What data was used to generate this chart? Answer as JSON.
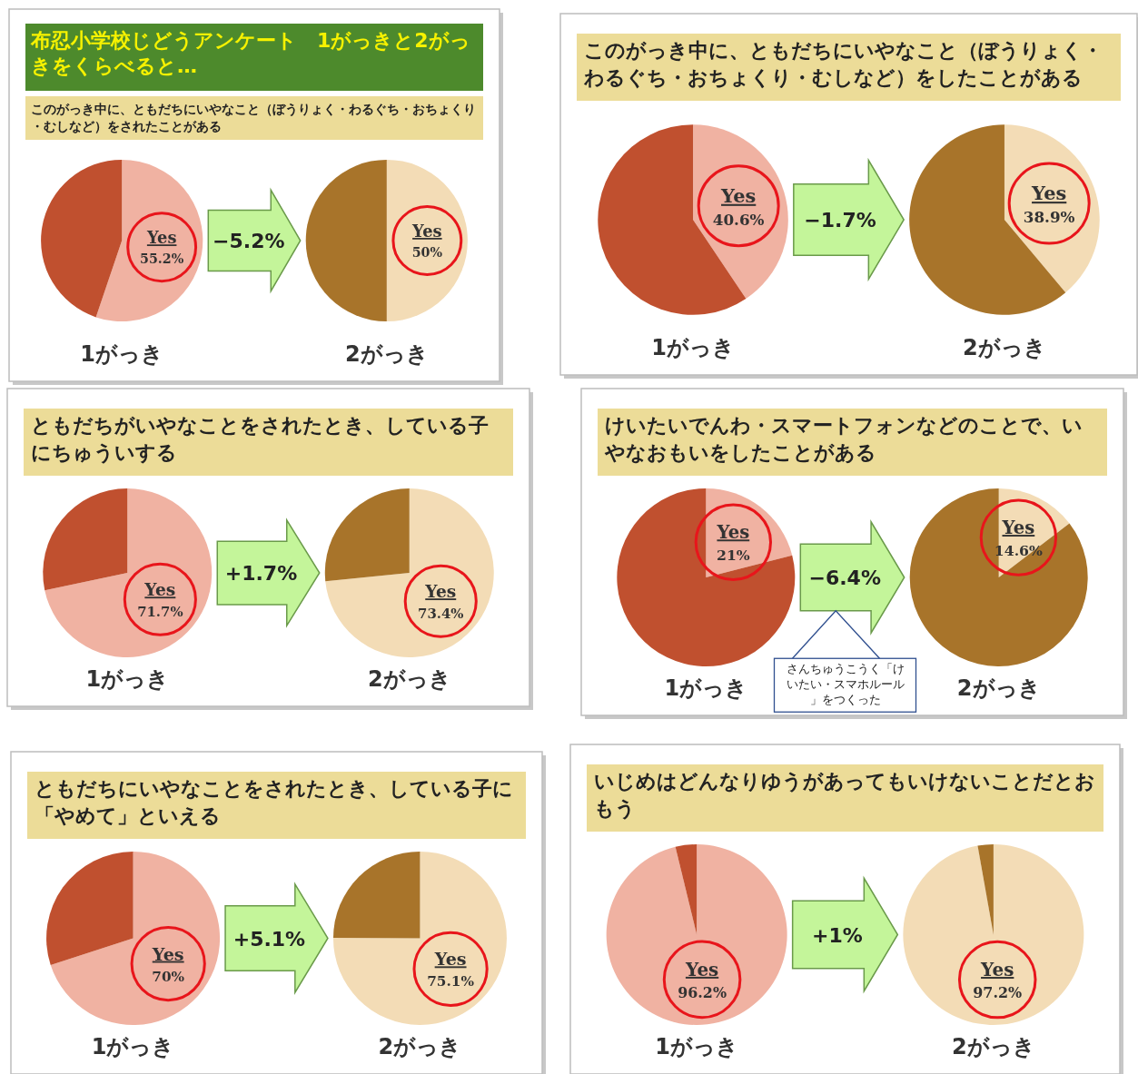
{
  "chart_data": [
    {
      "type": "pie",
      "title": "布忍小学校じどうアンケート　1がっきと2がっきをくらべると…",
      "subtitle": "このがっき中に、ともだちにいやなこと（ぼうりょく・わるぐち・おちょくり・むしなど）をされたことがある",
      "categories": [
        "Yes",
        null
      ],
      "values": [
        55.2,
        44.8
      ],
      "colors": [
        "#f0b2a2",
        "#c0502f"
      ],
      "value_labels": [
        "55.2%",
        null
      ],
      "xlabel": "1がっき"
    },
    {
      "type": "pie",
      "categories": [
        "Yes",
        null
      ],
      "values": [
        50,
        50
      ],
      "colors": [
        "#f3dcb6",
        "#a8742a"
      ],
      "value_labels": [
        "50%",
        null
      ],
      "xlabel": "2がっき",
      "annotations": [
        "−5.2%"
      ]
    },
    {
      "type": "pie",
      "title": "このがっき中に、ともだちにいやなこと（ぼうりょく・わるぐち・おちょくり・むしなど）をしたことがある",
      "categories": [
        "Yes",
        null
      ],
      "values": [
        40.6,
        59.4
      ],
      "colors": [
        "#f0b2a2",
        "#c0502f"
      ],
      "value_labels": [
        "40.6%",
        null
      ],
      "xlabel": "1がっき"
    },
    {
      "type": "pie",
      "categories": [
        "Yes",
        null
      ],
      "values": [
        38.9,
        61.1
      ],
      "colors": [
        "#f3dcb6",
        "#a8742a"
      ],
      "value_labels": [
        "38.9%",
        null
      ],
      "xlabel": "2がっき",
      "annotations": [
        "−1.7%"
      ]
    },
    {
      "type": "pie",
      "title": "ともだちがいやなことをされたとき、している子にちゅういする",
      "categories": [
        "Yes",
        null
      ],
      "values": [
        71.7,
        28.3
      ],
      "colors": [
        "#f0b2a2",
        "#c0502f"
      ],
      "value_labels": [
        "71.7%",
        null
      ],
      "xlabel": "1がっき"
    },
    {
      "type": "pie",
      "categories": [
        "Yes",
        null
      ],
      "values": [
        73.4,
        26.6
      ],
      "colors": [
        "#f3dcb6",
        "#a8742a"
      ],
      "value_labels": [
        "73.4%",
        null
      ],
      "xlabel": "2がっき",
      "annotations": [
        "+1.7%"
      ]
    },
    {
      "type": "pie",
      "title": "けいたいでんわ・スマートフォンなどのことで、いやなおもいをしたことがある",
      "categories": [
        "Yes",
        null
      ],
      "values": [
        21,
        79
      ],
      "colors": [
        "#f0b2a2",
        "#c0502f"
      ],
      "value_labels": [
        "21%",
        null
      ],
      "xlabel": "1がっき"
    },
    {
      "type": "pie",
      "categories": [
        "Yes",
        null
      ],
      "values": [
        14.6,
        85.4
      ],
      "colors": [
        "#f3dcb6",
        "#a8742a"
      ],
      "value_labels": [
        "14.6%",
        null
      ],
      "xlabel": "2がっき",
      "annotations": [
        "−6.4%",
        "さんちゅうこうく「けいたい・スマホルール」をつくった"
      ]
    },
    {
      "type": "pie",
      "title": "ともだちにいやなことをされたとき、している子に「やめて」といえる",
      "categories": [
        "Yes",
        null
      ],
      "values": [
        70,
        30
      ],
      "colors": [
        "#f0b2a2",
        "#c0502f"
      ],
      "value_labels": [
        "70%",
        null
      ],
      "xlabel": "1がっき"
    },
    {
      "type": "pie",
      "categories": [
        "Yes",
        null
      ],
      "values": [
        75.1,
        24.9
      ],
      "colors": [
        "#f3dcb6",
        "#a8742a"
      ],
      "value_labels": [
        "75.1%",
        null
      ],
      "xlabel": "2がっき",
      "annotations": [
        "+5.1%"
      ]
    },
    {
      "type": "pie",
      "title": "いじめはどんなりゆうがあってもいけないことだとおもう",
      "categories": [
        "Yes",
        null
      ],
      "values": [
        96.2,
        3.8
      ],
      "colors": [
        "#f0b2a2",
        "#c0502f"
      ],
      "value_labels": [
        "96.2%",
        null
      ],
      "xlabel": "1がっき"
    },
    {
      "type": "pie",
      "categories": [
        "Yes",
        null
      ],
      "values": [
        97.2,
        2.8
      ],
      "colors": [
        "#f3dcb6",
        "#a8742a"
      ],
      "value_labels": [
        "97.2%",
        null
      ],
      "xlabel": "2がっき",
      "annotations": [
        "+1%"
      ]
    }
  ]
}
